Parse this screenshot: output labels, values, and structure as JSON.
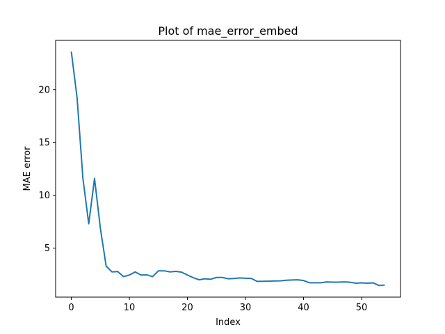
{
  "chart_data": {
    "type": "line",
    "title": "Plot of mae_error_embed",
    "xlabel": "Index",
    "ylabel": "MAE error",
    "xlim": [
      -2.7,
      56.7
    ],
    "ylim": [
      0.36,
      24.66
    ],
    "xticks": [
      0,
      10,
      20,
      30,
      40,
      50
    ],
    "yticks": [
      5,
      10,
      15,
      20
    ],
    "grid": false,
    "series": [
      {
        "color": "#1f77b4",
        "x": [
          0,
          1,
          2,
          3,
          4,
          5,
          6,
          7,
          8,
          9,
          10,
          11,
          12,
          13,
          14,
          15,
          16,
          17,
          18,
          19,
          20,
          21,
          22,
          23,
          24,
          25,
          26,
          27,
          28,
          29,
          30,
          31,
          32,
          33,
          34,
          35,
          36,
          37,
          38,
          39,
          40,
          41,
          42,
          43,
          44,
          45,
          46,
          47,
          48,
          49,
          50,
          51,
          52,
          53,
          54
        ],
        "values": [
          23.6,
          19.2,
          11.6,
          7.3,
          11.6,
          6.9,
          3.3,
          2.75,
          2.78,
          2.3,
          2.45,
          2.75,
          2.45,
          2.47,
          2.3,
          2.85,
          2.85,
          2.75,
          2.8,
          2.72,
          2.45,
          2.2,
          2.0,
          2.1,
          2.05,
          2.22,
          2.22,
          2.1,
          2.12,
          2.18,
          2.15,
          2.13,
          1.85,
          1.86,
          1.87,
          1.89,
          1.9,
          1.96,
          1.98,
          2.0,
          1.93,
          1.72,
          1.72,
          1.72,
          1.8,
          1.78,
          1.78,
          1.8,
          1.77,
          1.68,
          1.71,
          1.68,
          1.71,
          1.46,
          1.5
        ]
      }
    ]
  }
}
